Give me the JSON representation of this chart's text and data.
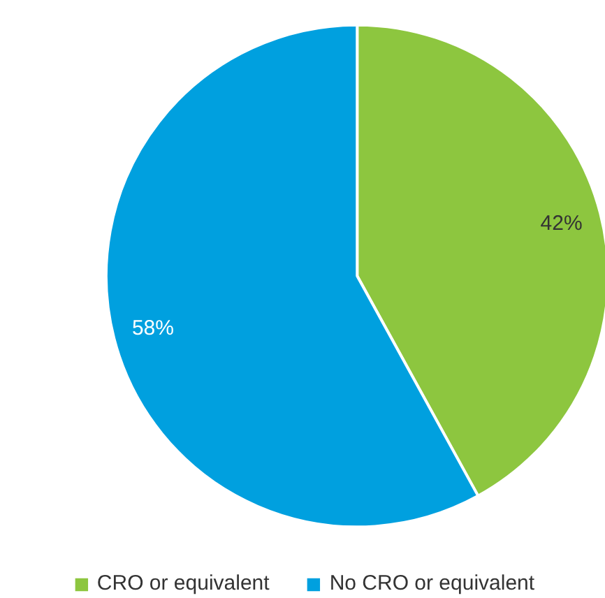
{
  "chart_data": {
    "type": "pie",
    "categories": [
      "CRO or equivalent",
      "No CRO or equivalent"
    ],
    "values": [
      42,
      58
    ],
    "colors": [
      "#8dc63f",
      "#00a0df"
    ],
    "value_labels": [
      "42%",
      "58%"
    ],
    "legend": "bottom"
  }
}
